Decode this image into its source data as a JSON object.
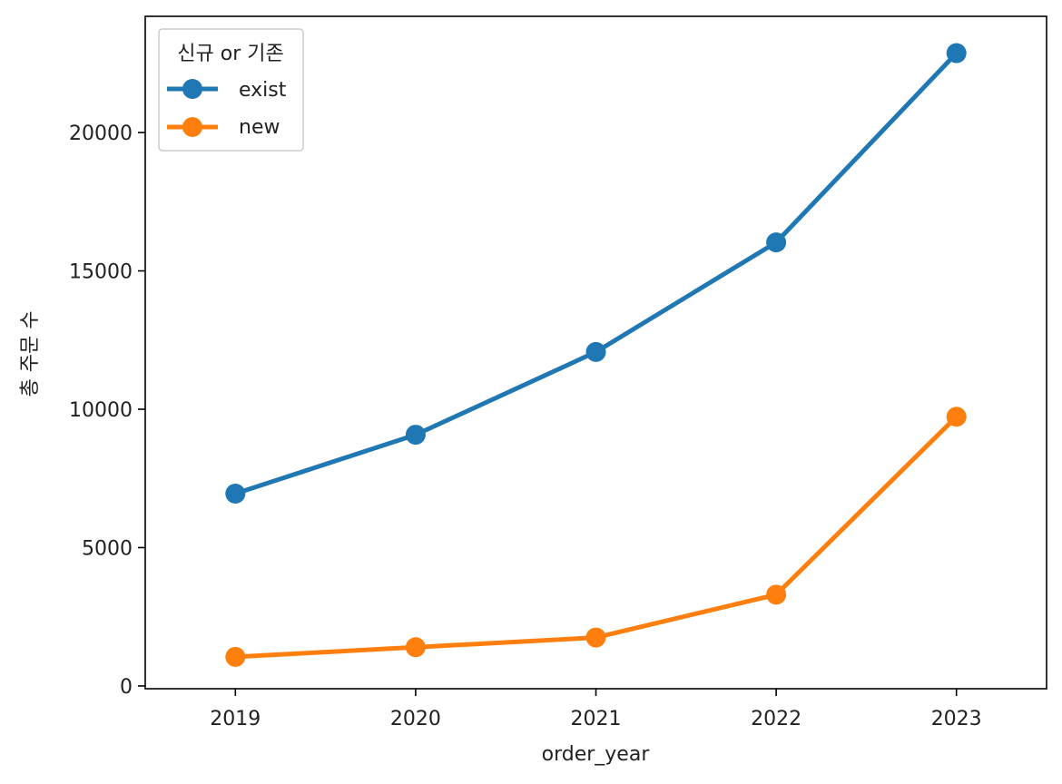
{
  "chart_data": {
    "type": "line",
    "title": "",
    "xlabel": "order_year",
    "ylabel": "총 주문 수",
    "categories": [
      "2019",
      "2020",
      "2021",
      "2022",
      "2023"
    ],
    "ylim": [
      -100,
      24200
    ],
    "yticks": [
      0,
      5000,
      10000,
      15000,
      20000
    ],
    "ytick_labels": [
      "0",
      "5000",
      "10000",
      "15000",
      "20000"
    ],
    "grid": false,
    "legend": {
      "title": "신규 or 기존",
      "placement": "top-left"
    },
    "series": [
      {
        "name": "exist",
        "color": "#1f77b4",
        "values": [
          6950,
          9080,
          12070,
          16030,
          22870
        ]
      },
      {
        "name": "new",
        "color": "#ff7f0e",
        "values": [
          1050,
          1400,
          1750,
          3300,
          9730
        ]
      }
    ]
  }
}
